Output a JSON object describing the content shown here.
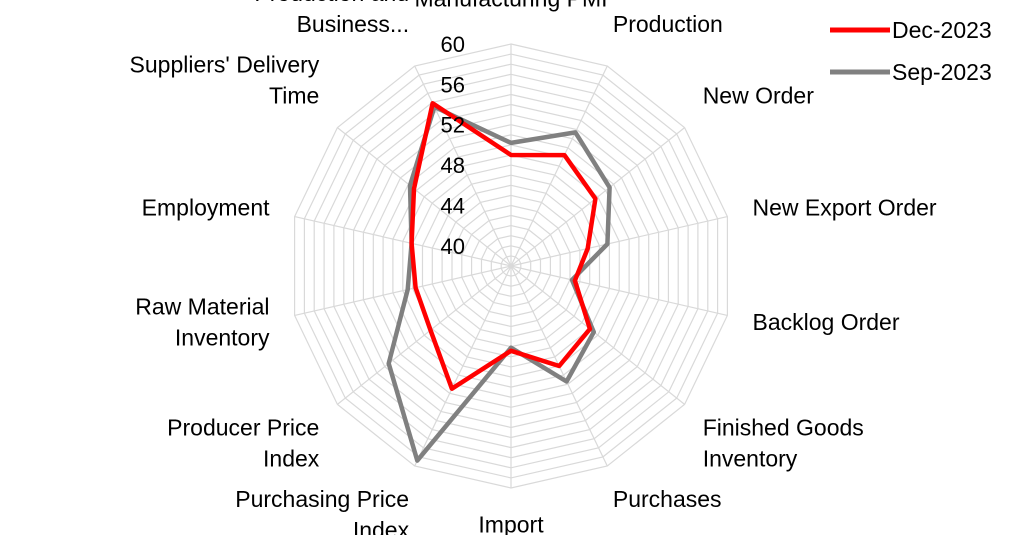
{
  "chart_data": {
    "type": "radar",
    "title": "",
    "categories": [
      "Manufacturing PMI",
      "Production",
      "New Order",
      "New Export Order",
      "Backlog Order",
      "Finished Goods Inventory",
      "Purchases",
      "Import",
      "Purchasing Price Index",
      "Producer Price Index",
      "Raw Material Inventory",
      "Employment",
      "Suppliers' Delivery Time",
      "Production and Business Activity Expectation"
    ],
    "category_display": [
      [
        "Manufacturing PMI"
      ],
      [
        "Production"
      ],
      [
        "New Order"
      ],
      [
        "New Export Order"
      ],
      [
        "Backlog Order"
      ],
      [
        "Finished Goods",
        "Inventory"
      ],
      [
        "Purchases"
      ],
      [
        "Import"
      ],
      [
        "Purchasing Price",
        "Index"
      ],
      [
        "Producer Price",
        "Index"
      ],
      [
        "Raw Material",
        "Inventory"
      ],
      [
        "Employment"
      ],
      [
        "Suppliers' Delivery",
        "Time"
      ],
      [
        "Production and",
        "Business..."
      ]
    ],
    "rlim": [
      38,
      60
    ],
    "ticks": [
      40,
      44,
      48,
      52,
      56,
      60
    ],
    "legend_position": "top-right",
    "grid": true,
    "series": [
      {
        "name": "Dec-2023",
        "color": "#ff0000",
        "values": [
          49.0,
          50.2,
          48.7,
          45.8,
          44.5,
          48.0,
          49.0,
          46.4,
          51.5,
          48.2,
          47.7,
          48.1,
          50.3,
          55.9
        ]
      },
      {
        "name": "Sep-2023",
        "color": "#808080",
        "values": [
          50.2,
          52.7,
          50.5,
          47.8,
          44.2,
          48.5,
          50.7,
          46.1,
          59.4,
          53.5,
          48.5,
          48.1,
          50.8,
          55.5
        ]
      }
    ]
  }
}
